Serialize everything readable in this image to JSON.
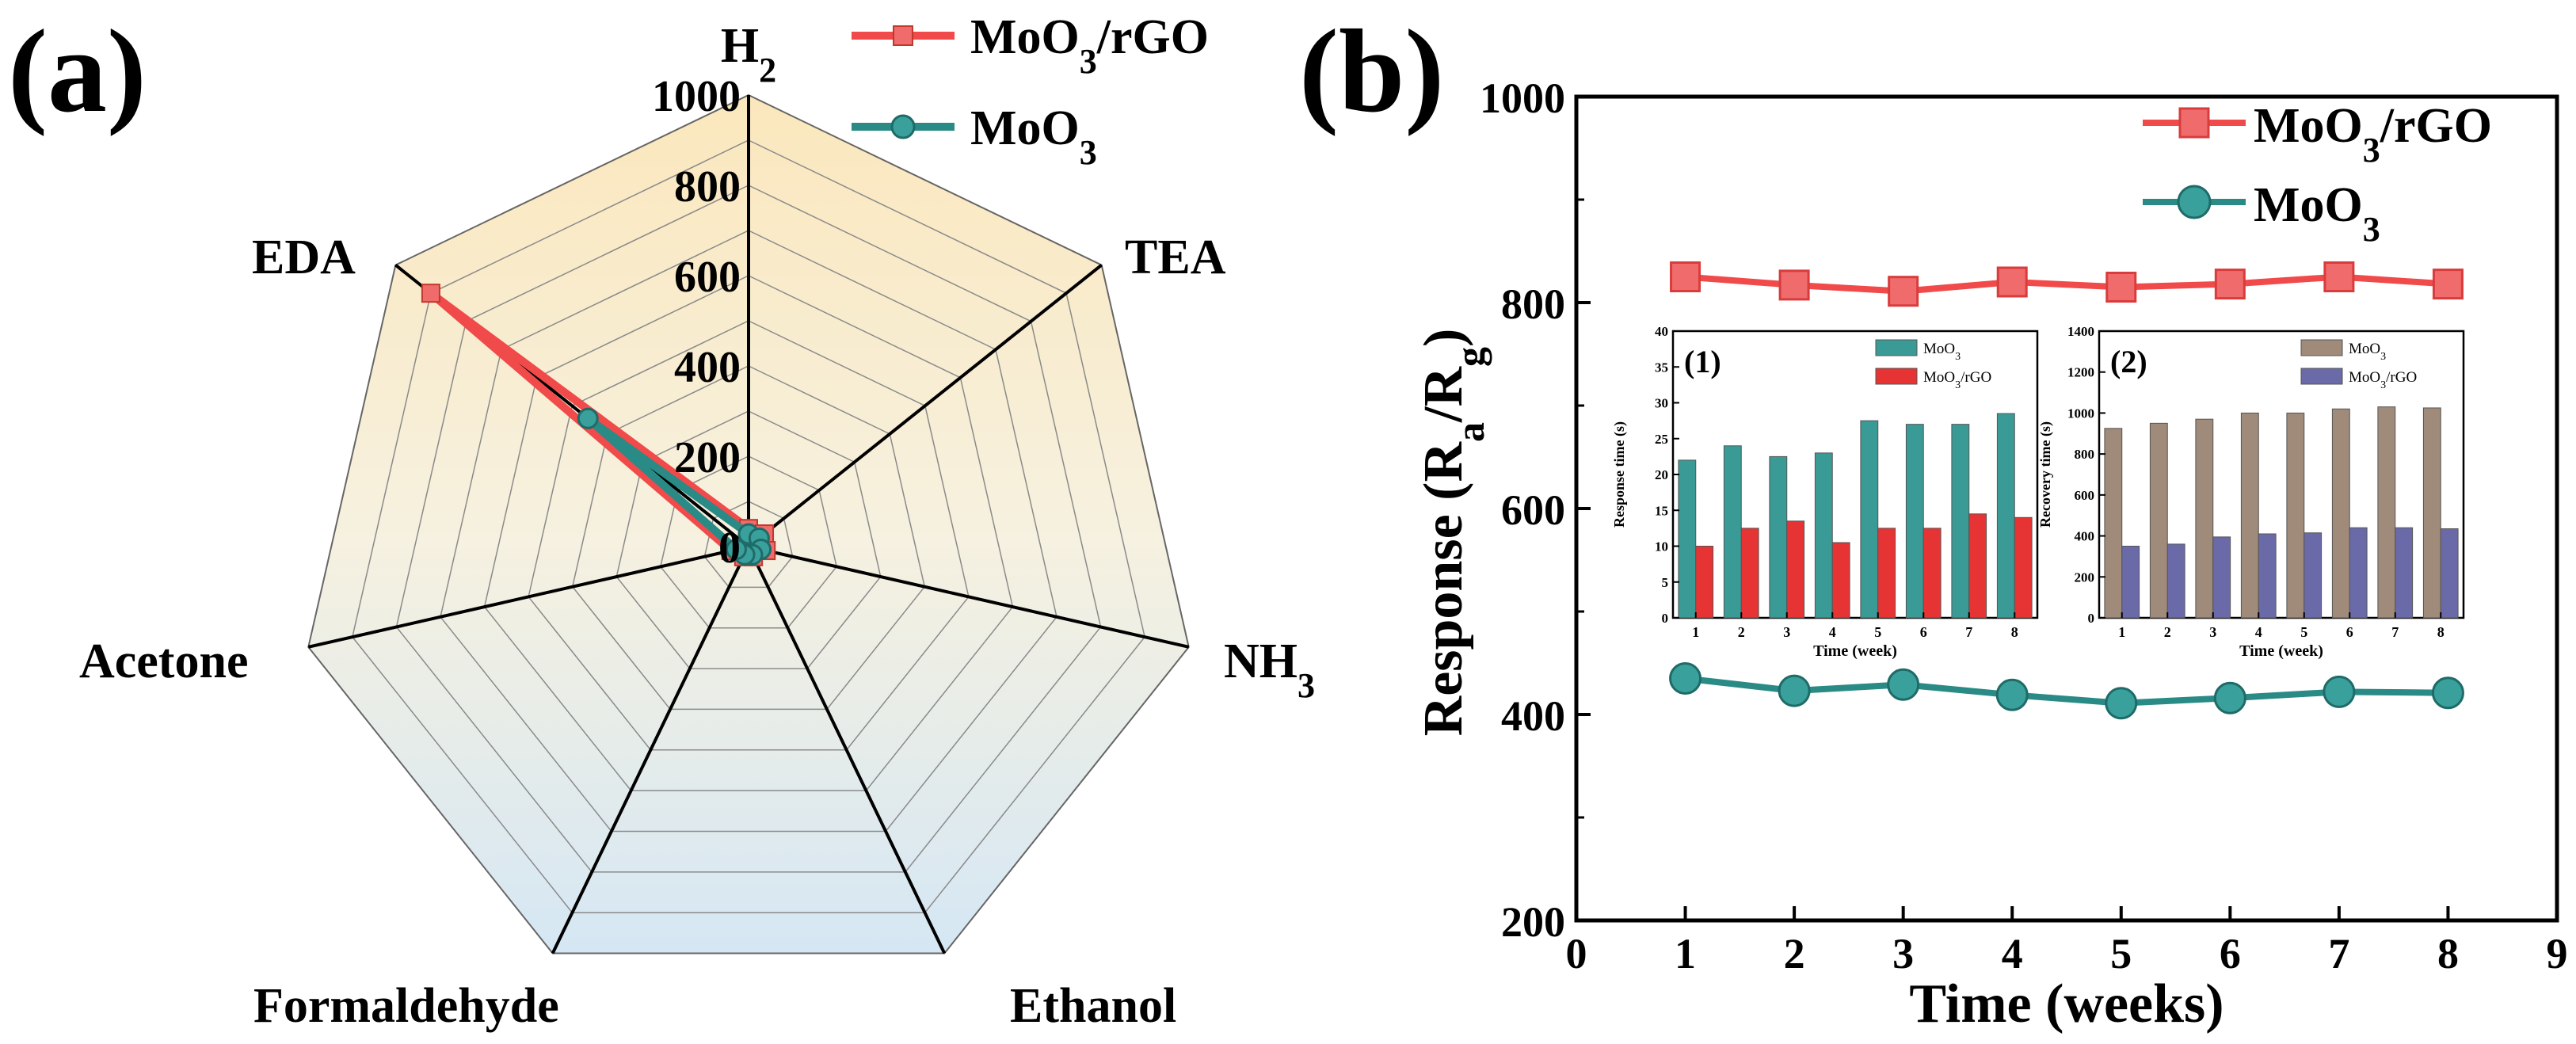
{
  "colors": {
    "mo_rgo": "#f04a4a",
    "mo_rgo_marker": "#f06b6b",
    "moo3": "#2a8a86",
    "moo3_marker": "#3aa09c",
    "bar_moo3": "#3a9a96",
    "bar_rgo": "#e63333",
    "bar_moo3_rec": "#a08a7a",
    "bar_rgo_rec": "#6a6aa8",
    "radar_top": "#fbe7bc",
    "radar_bottom": "#d5e7f4"
  },
  "chart_data": [
    {
      "type": "radar",
      "panel_label": "(a)",
      "axes": [
        "H",
        "TEA",
        "NH",
        "Ethanol",
        "Formaldehyde",
        "Acetone",
        "EDA"
      ],
      "axis_subscripts": [
        "2",
        "",
        "3",
        "",
        "",
        "",
        ""
      ],
      "rlim": [
        0,
        1000
      ],
      "rticks": [
        0,
        200,
        400,
        600,
        800,
        1000
      ],
      "rtick_labels": [
        "0",
        "200",
        "400",
        "600",
        "800",
        "1000"
      ],
      "series": [
        {
          "name": "MoO3/rGO",
          "label_main": "MoO",
          "label_sub": "3",
          "label_tail": "/rGO",
          "values": [
            40,
            45,
            40,
            25,
            25,
            40,
            900
          ]
        },
        {
          "name": "MoO3",
          "label_main": "MoO",
          "label_sub": "3",
          "label_tail": "",
          "values": [
            28,
            30,
            28,
            20,
            20,
            28,
            455
          ]
        }
      ]
    },
    {
      "type": "line",
      "panel_label": "(b)",
      "xlabel": "Time (weeks)",
      "ylabel_main": "Response (R",
      "ylabel_sub1": "a",
      "ylabel_mid": "/R",
      "ylabel_sub2": "g",
      "ylabel_tail": ")",
      "xlim": [
        0,
        9
      ],
      "ylim": [
        200,
        1000
      ],
      "xticks": [
        0,
        1,
        2,
        3,
        4,
        5,
        6,
        7,
        8,
        9
      ],
      "yticks": [
        200,
        400,
        600,
        800,
        1000
      ],
      "x": [
        1,
        2,
        3,
        4,
        5,
        6,
        7,
        8
      ],
      "series": [
        {
          "name": "MoO3/rGO",
          "label_main": "MoO",
          "label_sub": "3",
          "label_tail": "/rGO",
          "values": [
            825,
            817,
            811,
            820,
            815,
            818,
            825,
            818
          ]
        },
        {
          "name": "MoO3",
          "label_main": "MoO",
          "label_sub": "3",
          "label_tail": "",
          "values": [
            435,
            423,
            429,
            419,
            411,
            416,
            422,
            421
          ]
        }
      ]
    },
    {
      "type": "bar",
      "inset_label": "(1)",
      "xlabel": "Time (week)",
      "ylabel": "Response time  (s)",
      "ylim": [
        0,
        40
      ],
      "yticks": [
        0,
        5,
        10,
        15,
        20,
        25,
        30,
        35,
        40
      ],
      "categories": [
        "1",
        "2",
        "3",
        "4",
        "5",
        "6",
        "7",
        "8"
      ],
      "series": [
        {
          "name": "MoO3",
          "label_main": "MoO",
          "label_sub": "3",
          "label_tail": "",
          "values": [
            22,
            24,
            22.5,
            23,
            27.5,
            27,
            27,
            28.5
          ]
        },
        {
          "name": "MoO3/rGO",
          "label_main": "MoO",
          "label_sub": "3",
          "label_tail": "/rGO",
          "values": [
            10,
            12.5,
            13.5,
            10.5,
            12.5,
            12.5,
            14.5,
            14
          ]
        }
      ]
    },
    {
      "type": "bar",
      "inset_label": "(2)",
      "xlabel": "Time (week)",
      "ylabel": "Recovery time  (s)",
      "ylim": [
        0,
        1400
      ],
      "yticks": [
        0,
        200,
        400,
        600,
        800,
        1000,
        1200,
        1400
      ],
      "categories": [
        "1",
        "2",
        "3",
        "4",
        "5",
        "6",
        "7",
        "8"
      ],
      "series": [
        {
          "name": "MoO3",
          "label_main": "MoO",
          "label_sub": "3",
          "label_tail": "",
          "values": [
            925,
            950,
            970,
            1000,
            1000,
            1020,
            1030,
            1025
          ]
        },
        {
          "name": "MoO3/rGO",
          "label_main": "MoO",
          "label_sub": "3",
          "label_tail": "/rGO",
          "values": [
            350,
            360,
            395,
            410,
            415,
            440,
            440,
            435
          ]
        }
      ]
    }
  ]
}
